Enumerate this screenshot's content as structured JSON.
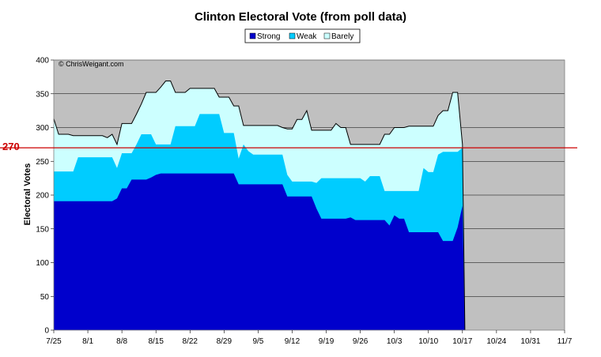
{
  "chart_data": {
    "type": "area",
    "title": "Clinton Electoral Vote (from poll data)",
    "xlabel": "",
    "ylabel": "Electoral Votes",
    "ylim": [
      0,
      400
    ],
    "yticks": [
      0,
      50,
      100,
      150,
      200,
      250,
      300,
      350,
      400
    ],
    "xticks": [
      "7/25",
      "8/1",
      "8/8",
      "8/15",
      "8/22",
      "8/29",
      "9/5",
      "9/12",
      "9/19",
      "9/26",
      "10/3",
      "10/10",
      "10/17",
      "10/24",
      "10/31",
      "11/7"
    ],
    "x_unit": "days since 7/25",
    "grid": "horizontal",
    "legend_position": "top-center",
    "annotation": "© ChrisWeigant.com",
    "reference_line": {
      "value": 270,
      "label": "270",
      "color": "#cc0000"
    },
    "colors": {
      "strong": "#0000cc",
      "weak": "#00ccff",
      "barely": "#ccffff",
      "plot_background": "#c0c0c0"
    },
    "x": [
      0,
      1,
      2,
      3,
      4,
      5,
      6,
      7,
      8,
      9,
      10,
      11,
      12,
      13,
      14,
      15,
      16,
      17,
      18,
      19,
      20,
      21,
      22,
      23,
      24,
      25,
      26,
      27,
      28,
      29,
      30,
      31,
      32,
      33,
      34,
      35,
      36,
      37,
      38,
      39,
      40,
      41,
      42,
      43,
      44,
      45,
      46,
      47,
      48,
      49,
      50,
      51,
      52,
      53,
      54,
      55,
      56,
      57,
      58,
      59,
      60,
      61,
      62,
      63,
      64,
      65,
      66,
      67,
      68,
      69,
      70,
      71,
      72,
      73,
      74,
      75,
      76,
      77,
      78,
      79,
      80,
      81,
      82,
      83,
      84
    ],
    "series": [
      {
        "name": "Strong",
        "values": [
          191,
          191,
          191,
          191,
          191,
          191,
          191,
          191,
          191,
          191,
          191,
          191,
          191,
          195,
          210,
          210,
          223,
          223,
          223,
          223,
          226,
          230,
          232,
          232,
          232,
          232,
          232,
          232,
          232,
          232,
          232,
          232,
          232,
          232,
          232,
          232,
          232,
          232,
          216,
          216,
          216,
          216,
          216,
          216,
          216,
          216,
          216,
          216,
          198,
          198,
          198,
          198,
          198,
          198,
          180,
          165,
          165,
          165,
          165,
          165,
          165,
          167,
          163,
          163,
          163,
          163,
          163,
          163,
          163,
          155,
          170,
          165,
          165,
          145,
          145,
          145,
          145,
          145,
          145,
          145,
          132,
          132,
          132,
          152,
          184
        ]
      },
      {
        "name": "Weak",
        "values": [
          235,
          235,
          235,
          235,
          235,
          256,
          256,
          256,
          256,
          256,
          256,
          256,
          256,
          240,
          262,
          262,
          262,
          275,
          290,
          290,
          290,
          275,
          275,
          275,
          275,
          302,
          302,
          302,
          302,
          302,
          320,
          320,
          320,
          320,
          320,
          292,
          292,
          292,
          254,
          275,
          265,
          260,
          260,
          260,
          260,
          260,
          260,
          260,
          230,
          220,
          220,
          220,
          220,
          220,
          218,
          225,
          225,
          225,
          225,
          225,
          225,
          225,
          225,
          225,
          220,
          228,
          228,
          228,
          206,
          206,
          206,
          206,
          206,
          206,
          206,
          206,
          240,
          234,
          234,
          260,
          264,
          264,
          264,
          264,
          270
        ]
      },
      {
        "name": "Barely",
        "values": [
          313,
          290,
          290,
          290,
          288,
          288,
          288,
          288,
          288,
          288,
          288,
          285,
          290,
          275,
          306,
          306,
          306,
          320,
          335,
          352,
          352,
          352,
          360,
          369,
          369,
          352,
          352,
          352,
          358,
          358,
          358,
          358,
          358,
          358,
          345,
          345,
          345,
          332,
          332,
          303,
          303,
          303,
          303,
          303,
          303,
          303,
          303,
          300,
          298,
          298,
          312,
          312,
          325,
          296,
          296,
          296,
          296,
          296,
          306,
          300,
          300,
          275,
          275,
          275,
          275,
          275,
          275,
          275,
          290,
          290,
          300,
          300,
          300,
          302,
          302,
          302,
          302,
          302,
          302,
          318,
          325,
          325,
          352,
          352,
          275
        ]
      }
    ]
  }
}
